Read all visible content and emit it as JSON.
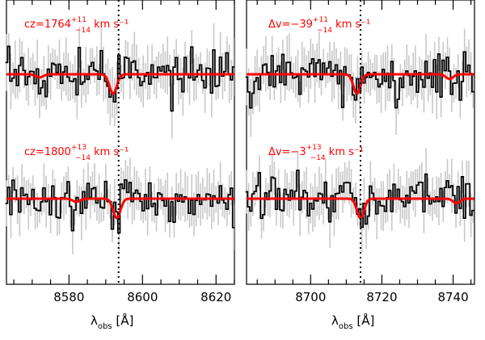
{
  "chart_data": [
    {
      "type": "line",
      "panel": "left-top",
      "annotation": {
        "prefix": "cz=1764",
        "sup": "+11",
        "sub": "−14",
        "suffix": " km s⁻¹"
      },
      "x_unit_label": "λobs [Å]",
      "xlim": [
        8563,
        8625
      ],
      "xticks": [
        8580,
        8600,
        8620
      ],
      "line_center": 8593.5,
      "series": [
        {
          "role": "spectrum-error",
          "color": "#c8c8c8"
        },
        {
          "role": "spectrum",
          "color": "#000000"
        },
        {
          "role": "model",
          "color": "#ff0000",
          "continuum": 1.0,
          "depth": 0.5,
          "center": 8592,
          "width": 1.0,
          "secondary": [
            {
              "center": 8572,
              "depth": 0.08,
              "width": 1.0
            }
          ]
        }
      ]
    },
    {
      "type": "line",
      "panel": "left-bottom",
      "annotation": {
        "prefix": "cz=1800",
        "sup": "+13",
        "sub": "−14",
        "suffix": " km s⁻¹"
      },
      "xlim": [
        8563,
        8625
      ],
      "line_center": 8593.5,
      "series": [
        {
          "role": "spectrum-error",
          "color": "#c8c8c8"
        },
        {
          "role": "spectrum",
          "color": "#000000"
        },
        {
          "role": "model",
          "color": "#ff0000",
          "continuum": 1.0,
          "depth": 0.5,
          "center": 8593,
          "width": 1.0,
          "secondary": [
            {
              "center": 8582,
              "depth": 0.08,
              "width": 1.0
            }
          ]
        }
      ]
    },
    {
      "type": "line",
      "panel": "right-top",
      "annotation": {
        "prefix": "Δv=−39",
        "sup": "+11",
        "sub": "−14",
        "suffix": " km s⁻¹"
      },
      "xlim": [
        8682,
        8746
      ],
      "xticks": [
        8700,
        8720,
        8740
      ],
      "line_center": 8714,
      "series": [
        {
          "role": "spectrum-error",
          "color": "#c8c8c8"
        },
        {
          "role": "spectrum",
          "color": "#000000"
        },
        {
          "role": "model",
          "color": "#ff0000",
          "continuum": 1.0,
          "depth": 0.5,
          "center": 8713,
          "width": 1.0,
          "secondary": [
            {
              "center": 8739,
              "depth": 0.12,
              "width": 1.0
            }
          ]
        }
      ]
    },
    {
      "type": "line",
      "panel": "right-bottom",
      "annotation": {
        "prefix": "Δv=−3",
        "sup": "+13",
        "sub": "−14",
        "suffix": " km s⁻¹"
      },
      "xlim": [
        8682,
        8746
      ],
      "line_center": 8714,
      "series": [
        {
          "role": "spectrum-error",
          "color": "#c8c8c8"
        },
        {
          "role": "spectrum",
          "color": "#000000"
        },
        {
          "role": "model",
          "color": "#ff0000",
          "continuum": 1.0,
          "depth": 0.5,
          "center": 8714,
          "width": 1.0,
          "secondary": [
            {
              "center": 8741,
              "depth": 0.12,
              "width": 1.0
            }
          ]
        }
      ]
    }
  ],
  "axis_label": {
    "lambda": "λ",
    "sub": "obs",
    "unit": " [Å]"
  }
}
